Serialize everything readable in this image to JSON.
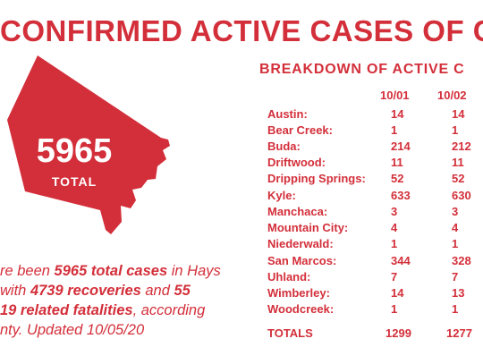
{
  "headline": "CONFIRMED ACTIVE CASES OF COVI",
  "total": {
    "number": "5965",
    "label": "TOTAL"
  },
  "summary": {
    "line1_pre": "re been ",
    "line1_bold": "5965 total cases",
    "line1_post": " in Hays",
    "line2_pre": "with ",
    "line2_bold1": "4739 recoveries",
    "line2_mid": " and ",
    "line2_bold2": "55",
    "line3_bold": "19 related fatalities",
    "line3_post": ", according",
    "line4": "nty. Updated 10/05/20"
  },
  "breakdown": {
    "title": "BREAKDOWN OF ACTIVE C",
    "columns": [
      "10/01",
      "10/02"
    ],
    "rows": [
      {
        "name": "Austin:",
        "v1": "14",
        "v2": "14"
      },
      {
        "name": "Bear Creek:",
        "v1": "1",
        "v2": "1"
      },
      {
        "name": "Buda:",
        "v1": "214",
        "v2": "212"
      },
      {
        "name": "Driftwood:",
        "v1": "11",
        "v2": "11"
      },
      {
        "name": "Dripping Springs:",
        "v1": "52",
        "v2": "52"
      },
      {
        "name": "Kyle:",
        "v1": "633",
        "v2": "630"
      },
      {
        "name": "Manchaca:",
        "v1": "3",
        "v2": "3"
      },
      {
        "name": "Mountain City:",
        "v1": "4",
        "v2": "4"
      },
      {
        "name": "Niederwald:",
        "v1": "1",
        "v2": "1"
      },
      {
        "name": "San Marcos:",
        "v1": "344",
        "v2": "328"
      },
      {
        "name": "Uhland:",
        "v1": "7",
        "v2": "7"
      },
      {
        "name": "Wimberley:",
        "v1": "14",
        "v2": "13"
      },
      {
        "name": "Woodcreek:",
        "v1": "1",
        "v2": "1"
      }
    ],
    "totals": {
      "name": "TOTALS",
      "v1": "1299",
      "v2": "1277"
    }
  },
  "colors": {
    "accent": "#d32f3a",
    "background": "#ffffff"
  }
}
